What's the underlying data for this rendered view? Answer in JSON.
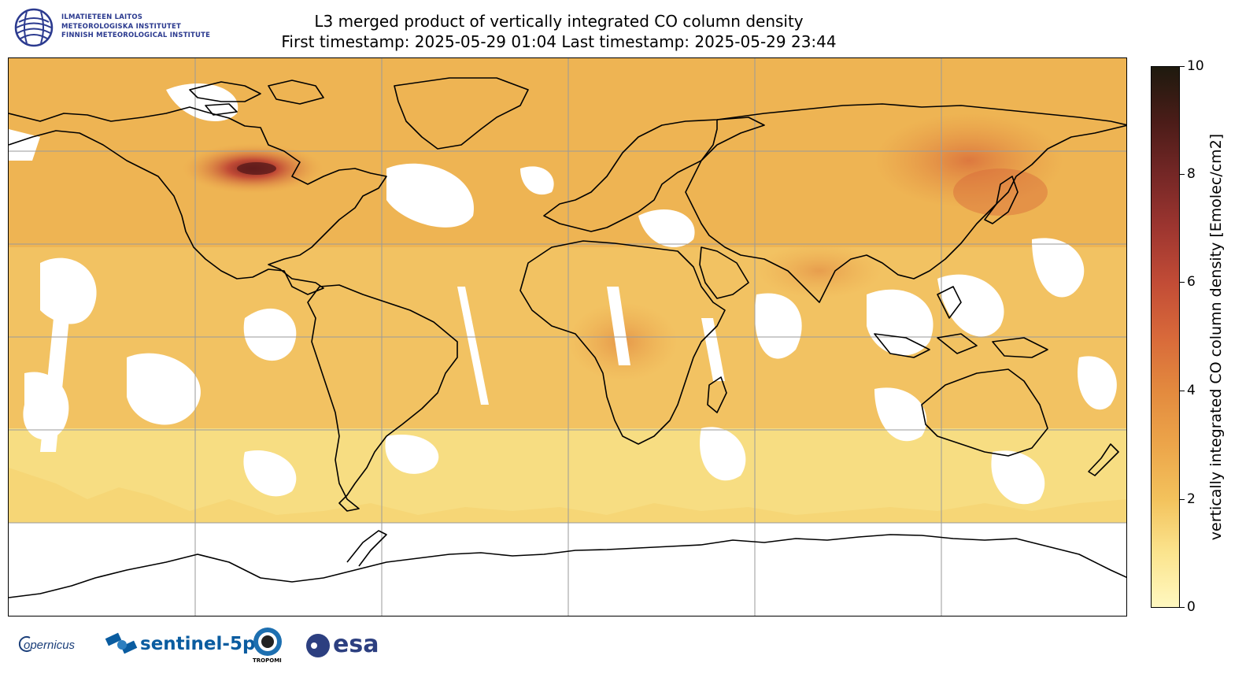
{
  "header": {
    "institute_lines": [
      "ILMATIETEEN LAITOS",
      "METEOROLOGISKA INSTITUTET",
      "FINNISH METEOROLOGICAL INSTITUTE"
    ],
    "title_line1": "L3 merged product of vertically integrated CO column density",
    "title_line2": "First timestamp: 2025-05-29 01:04   Last timestamp: 2025-05-29 23:44"
  },
  "map": {
    "projection": "equirectangular",
    "lon_range": [
      -180,
      180
    ],
    "lat_range": [
      -90,
      90
    ],
    "gridlines": true,
    "gridline_lons": [
      -120,
      -60,
      0,
      60,
      120
    ],
    "gridline_lats": [
      -60,
      -30,
      0,
      30,
      60
    ],
    "no_data_region": "south of ~60S and scattered cloud gaps",
    "hotspots": [
      {
        "region": "Western Canada wildfires",
        "level": "high"
      },
      {
        "region": "Eastern Siberia / Northeast China",
        "level": "high"
      },
      {
        "region": "Central Africa",
        "level": "moderate"
      },
      {
        "region": "India / South Asia",
        "level": "moderate"
      }
    ]
  },
  "colorbar": {
    "label": "vertically integrated CO column density [Emolec/cm2]",
    "min": 0,
    "max": 10,
    "ticks": [
      "0",
      "2",
      "4",
      "6",
      "8",
      "10"
    ],
    "colors": [
      "#fff8c0",
      "#f3c25c",
      "#e38a3e",
      "#c24c36",
      "#752726",
      "#1e1a0e"
    ]
  },
  "footer": {
    "logos": [
      "opernicus",
      "sentinel-5p",
      "TROPOMI",
      "esa"
    ]
  }
}
